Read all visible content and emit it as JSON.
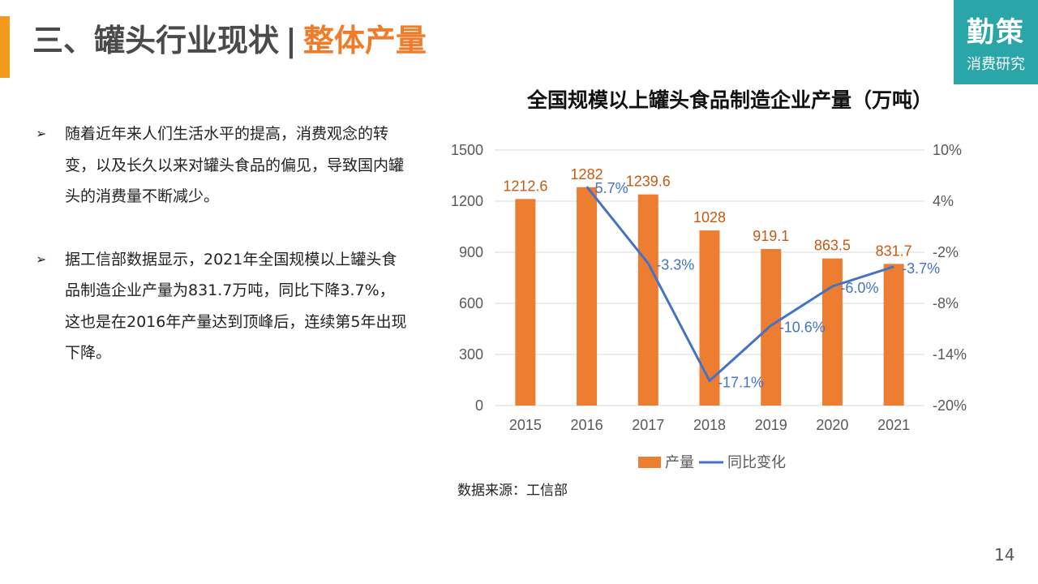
{
  "header": {
    "title_main": "三、罐头行业现状",
    "separator": "|",
    "title_sub": "整体产量"
  },
  "logo": {
    "brand": "勤策",
    "tagline": "消费研究"
  },
  "bullets": [
    {
      "marker": "➢",
      "text": "随着近年来人们生活水平的提高，消费观念的转变，以及长久以来对罐头食品的偏见，导致国内罐头的消费量不断减少。"
    },
    {
      "marker": "➢",
      "text": "据工信部数据显示，2021年全国规模以上罐头食品制造企业产量为831.7万吨，同比下降3.7%，这也是在2016年产量达到顶峰后，连续第5年出现下降。"
    }
  ],
  "colors": {
    "bar": "#ed7d31",
    "line": "#4472c4",
    "accent": "#f39a1e",
    "logo_bg": "#2aa5a8"
  },
  "chart_data": {
    "type": "bar",
    "title": "全国规模以上罐头食品制造企业产量（万吨）",
    "categories": [
      "2015",
      "2016",
      "2017",
      "2018",
      "2019",
      "2020",
      "2021"
    ],
    "series": [
      {
        "name": "产量",
        "type": "bar",
        "axis": "left",
        "values": [
          1212.6,
          1282,
          1239.6,
          1028,
          919.1,
          863.5,
          831.7
        ],
        "labels": [
          "1212.6",
          "1282",
          "1239.6",
          "1028",
          "919.1",
          "863.5",
          "831.7"
        ]
      },
      {
        "name": "同比变化",
        "type": "line",
        "axis": "right",
        "x": [
          "2016",
          "2017",
          "2018",
          "2019",
          "2020",
          "2021"
        ],
        "values": [
          5.7,
          -3.3,
          -17.1,
          -10.6,
          -6.0,
          -3.7
        ],
        "labels": [
          "5.7%",
          "-3.3%",
          "-17.1%",
          "-10.6%",
          "-6.0%",
          "-3.7%"
        ]
      }
    ],
    "y_left": {
      "min": 0,
      "max": 1500,
      "ticks": [
        0,
        300,
        600,
        900,
        1200,
        1500
      ],
      "tick_labels": [
        "0",
        "300",
        "600",
        "900",
        "1200",
        "1500"
      ]
    },
    "y_right": {
      "min": -20,
      "max": 10,
      "ticks": [
        -20,
        -14,
        -8,
        -2,
        4,
        10
      ],
      "tick_labels": [
        "-20%",
        "-14%",
        "-8%",
        "-2%",
        "4%",
        "10%"
      ]
    },
    "grid": true,
    "legend": "bottom"
  },
  "source": "数据来源：工信部",
  "page_number": "14"
}
